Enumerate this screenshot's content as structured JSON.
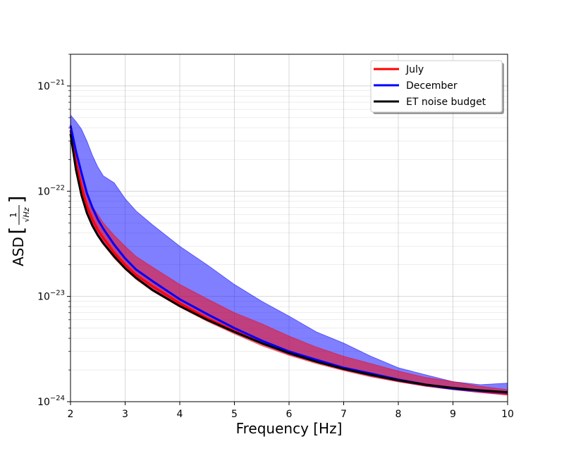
{
  "chart_data": {
    "type": "line",
    "xlabel": "Frequency [Hz]",
    "ylabel": "ASD",
    "ylabel_unit": "1/√Hz",
    "xlim": [
      2,
      10
    ],
    "ylim": [
      1e-24,
      2e-21
    ],
    "yscale": "log",
    "grid": true,
    "legend_position": "top-right",
    "x_ticks": [
      2,
      3,
      4,
      5,
      6,
      7,
      8,
      9,
      10
    ],
    "x_tick_labels": [
      "2",
      "3",
      "4",
      "5",
      "6",
      "7",
      "8",
      "9",
      "10"
    ],
    "y_ticks": [
      1e-24,
      1e-23,
      1e-22,
      1e-21
    ],
    "y_tick_labels": [
      {
        "base": "10",
        "exp": "−24"
      },
      {
        "base": "10",
        "exp": "−23"
      },
      {
        "base": "10",
        "exp": "−22"
      },
      {
        "base": "10",
        "exp": "−21"
      }
    ],
    "x": [
      2.0,
      2.1,
      2.2,
      2.3,
      2.4,
      2.5,
      2.6,
      2.8,
      3.0,
      3.2,
      3.5,
      4.0,
      4.5,
      5.0,
      5.5,
      6.0,
      6.5,
      7.0,
      7.5,
      8.0,
      8.5,
      9.0,
      9.5,
      10.0
    ],
    "series": [
      {
        "name": "July",
        "color": "#ff0000",
        "values": [
          3.8e-22,
          1.9e-22,
          1.1e-22,
          7.2e-23,
          5.4e-23,
          4.3e-23,
          3.6e-23,
          2.6e-23,
          2e-23,
          1.6e-23,
          1.25e-23,
          8.6e-24,
          6.2e-24,
          4.7e-24,
          3.6e-24,
          2.9e-24,
          2.4e-24,
          2.05e-24,
          1.8e-24,
          1.6e-24,
          1.45e-24,
          1.35e-24,
          1.27e-24,
          1.2e-24
        ],
        "upper": [
          4.5e-22,
          2.4e-22,
          1.45e-22,
          9.5e-23,
          7.2e-23,
          6e-23,
          5e-23,
          3.8e-23,
          3e-23,
          2.4e-23,
          1.9e-23,
          1.3e-23,
          9.5e-24,
          7e-24,
          5.5e-24,
          4.2e-24,
          3.3e-24,
          2.7e-24,
          2.3e-24,
          1.95e-24,
          1.7e-24,
          1.55e-24,
          1.4e-24,
          1.3e-24
        ],
        "lower": [
          3.3e-22,
          1.65e-22,
          9.5e-23,
          6.1e-23,
          4.6e-23,
          3.7e-23,
          3.1e-23,
          2.3e-23,
          1.8e-23,
          1.45e-23,
          1.12e-23,
          7.9e-24,
          5.8e-24,
          4.4e-24,
          3.4e-24,
          2.75e-24,
          2.3e-24,
          1.97e-24,
          1.72e-24,
          1.54e-24,
          1.4e-24,
          1.3e-24,
          1.22e-24,
          1.15e-24
        ]
      },
      {
        "name": "December",
        "color": "#0000ff",
        "values": [
          4.2e-22,
          2.4e-22,
          1.5e-22,
          9.6e-23,
          7e-23,
          5.4e-23,
          4.4e-23,
          3.1e-23,
          2.3e-23,
          1.8e-23,
          1.4e-23,
          9.4e-24,
          6.8e-24,
          5e-24,
          3.8e-24,
          3e-24,
          2.5e-24,
          2.1e-24,
          1.85e-24,
          1.62e-24,
          1.45e-24,
          1.33e-24,
          1.27e-24,
          1.22e-24
        ],
        "upper": [
          5.3e-22,
          4.6e-22,
          3.9e-22,
          3e-22,
          2.2e-22,
          1.7e-22,
          1.4e-22,
          1.2e-22,
          8.5e-23,
          6.5e-23,
          4.8e-23,
          3e-23,
          2e-23,
          1.3e-23,
          9e-24,
          6.5e-24,
          4.6e-24,
          3.6e-24,
          2.7e-24,
          2.1e-24,
          1.8e-24,
          1.55e-24,
          1.45e-24,
          1.5e-24
        ],
        "lower": [
          3.6e-22,
          1.8e-22,
          1.05e-22,
          6.7e-23,
          5e-23,
          4e-23,
          3.3e-23,
          2.4e-23,
          1.85e-23,
          1.5e-23,
          1.15e-23,
          8e-24,
          5.9e-24,
          4.5e-24,
          3.5e-24,
          2.8e-24,
          2.35e-24,
          2e-24,
          1.75e-24,
          1.55e-24,
          1.4e-24,
          1.3e-24,
          1.22e-24,
          1.17e-24
        ]
      },
      {
        "name": "ET noise budget",
        "color": "#000000",
        "values": [
          3.5e-22,
          1.6e-22,
          9.2e-23,
          6.2e-23,
          4.7e-23,
          3.8e-23,
          3.2e-23,
          2.4e-23,
          1.85e-23,
          1.5e-23,
          1.15e-23,
          8.1e-24,
          6e-24,
          4.6e-24,
          3.6e-24,
          2.9e-24,
          2.4e-24,
          2.05e-24,
          1.8e-24,
          1.6e-24,
          1.45e-24,
          1.35e-24,
          1.28e-24,
          1.23e-24
        ]
      }
    ]
  }
}
